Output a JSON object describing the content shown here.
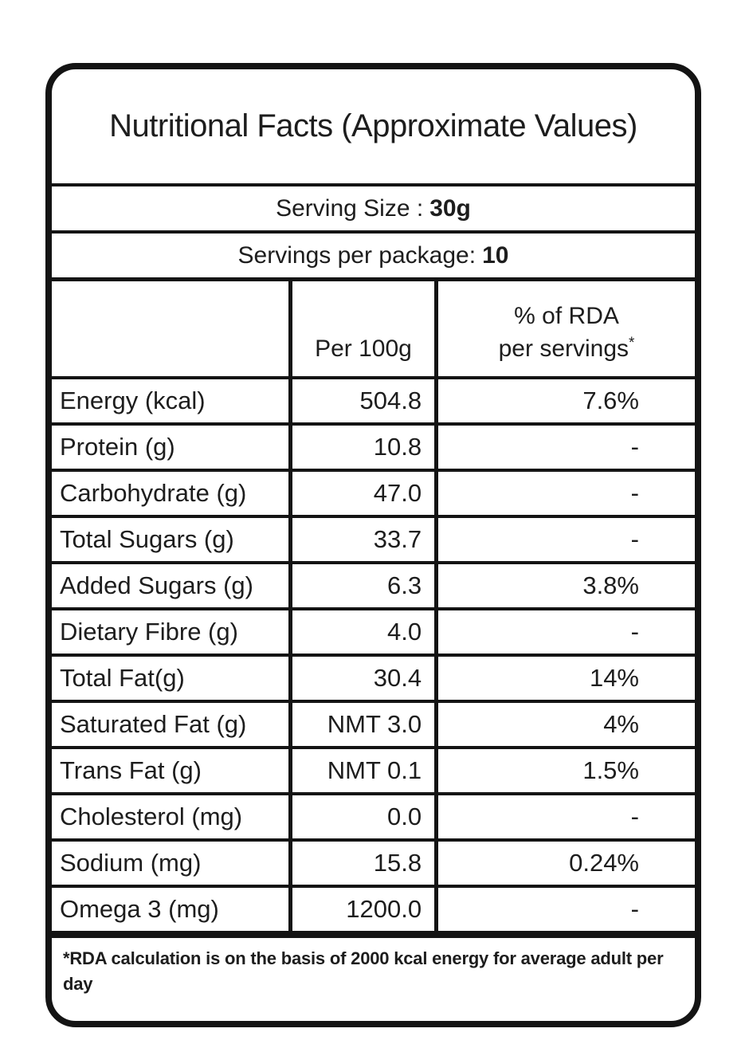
{
  "label": {
    "title": "Nutritional Facts (Approximate Values)",
    "serving_size": {
      "label": "Serving Size :",
      "value": "30g"
    },
    "servings_per_package": {
      "label": "Servings per package:",
      "value": "10"
    },
    "table": {
      "columns": {
        "nutrient": "",
        "per_100g": "Per 100g",
        "rda_line1": "% of RDA",
        "rda_line2": "per servings",
        "rda_superscript": "*"
      },
      "rows": [
        {
          "nutrient": "Energy (kcal)",
          "per_100g": "504.8",
          "rda_percent": "7.6%"
        },
        {
          "nutrient": "Protein (g)",
          "per_100g": "10.8",
          "rda_percent": "-"
        },
        {
          "nutrient": "Carbohydrate (g)",
          "per_100g": "47.0",
          "rda_percent": "-"
        },
        {
          "nutrient": "Total Sugars (g)",
          "per_100g": "33.7",
          "rda_percent": "-"
        },
        {
          "nutrient": "Added Sugars (g)",
          "per_100g": "6.3",
          "rda_percent": "3.8%"
        },
        {
          "nutrient": "Dietary Fibre (g)",
          "per_100g": "4.0",
          "rda_percent": "-"
        },
        {
          "nutrient": "Total Fat(g)",
          "per_100g": "30.4",
          "rda_percent": "14%"
        },
        {
          "nutrient": "Saturated Fat (g)",
          "per_100g": "NMT 3.0",
          "rda_percent": "4%"
        },
        {
          "nutrient": "Trans Fat (g)",
          "per_100g": "NMT 0.1",
          "rda_percent": "1.5%"
        },
        {
          "nutrient": "Cholesterol (mg)",
          "per_100g": "0.0",
          "rda_percent": "-"
        },
        {
          "nutrient": "Sodium (mg)",
          "per_100g": "15.8",
          "rda_percent": "0.24%"
        },
        {
          "nutrient": "Omega 3 (mg)",
          "per_100g": "1200.0",
          "rda_percent": "-"
        }
      ]
    },
    "footnote": "*RDA calculation is on the basis of 2000 kcal energy for average adult per day",
    "colors": {
      "border": "#141414",
      "text": "#1d1d1d",
      "background": "#ffffff"
    }
  }
}
